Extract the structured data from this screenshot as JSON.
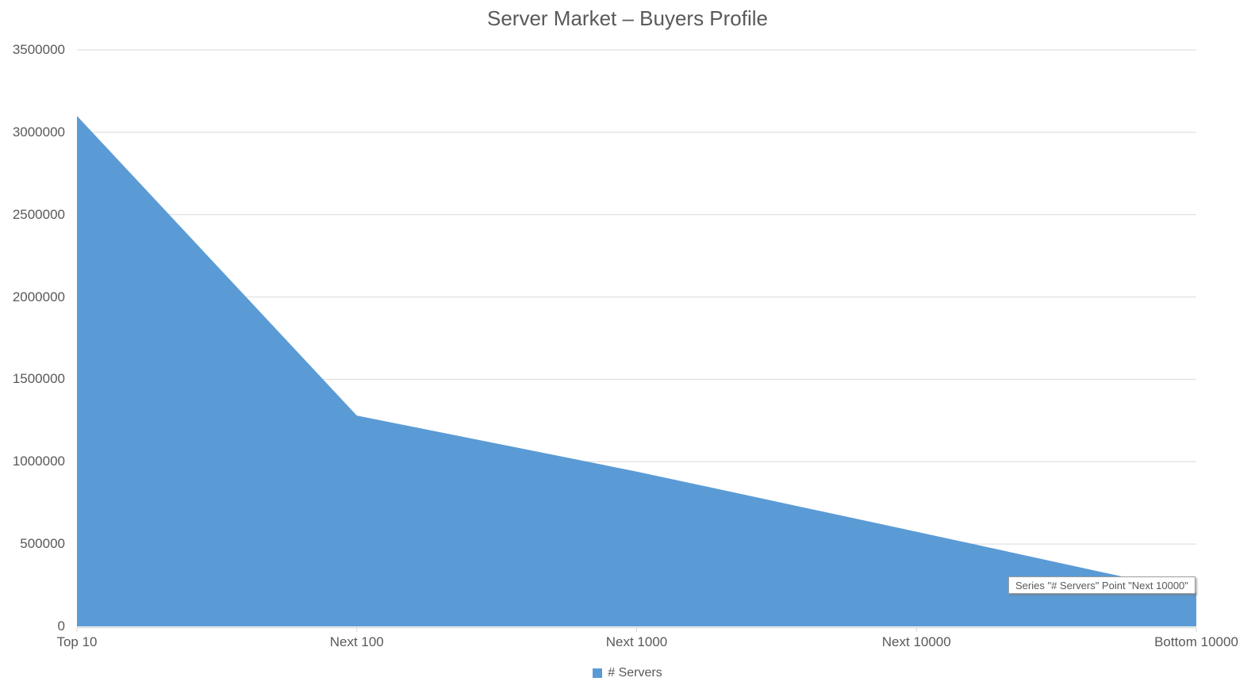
{
  "chart_data": {
    "type": "area",
    "title": "Server Market – Buyers Profile",
    "categories": [
      "Top 10",
      "Next 100",
      "Next 1000",
      "Next 10000",
      "Bottom 10000"
    ],
    "series": [
      {
        "name": "# Servers",
        "values": [
          3100000,
          1280000,
          940000,
          575000,
          205000
        ]
      }
    ],
    "xlabel": "",
    "ylabel": "",
    "ylim": [
      0,
      3500000
    ],
    "y_tick_step": 500000,
    "y_tick_labels": [
      "0",
      "500000",
      "1000000",
      "1500000",
      "2000000",
      "2500000",
      "3000000",
      "3500000"
    ],
    "grid": "horizontal",
    "legend_position": "bottom",
    "colors": {
      "area_fill": "#5B9BD5",
      "gridline": "#D9D9D9",
      "axis_line": "#D9D9D9",
      "text": "#595959"
    }
  },
  "legend": {
    "items": [
      {
        "label": "# Servers",
        "color": "#5B9BD5"
      }
    ]
  },
  "tooltip": {
    "text": "Series \"# Servers\" Point \"Next 10000\""
  }
}
